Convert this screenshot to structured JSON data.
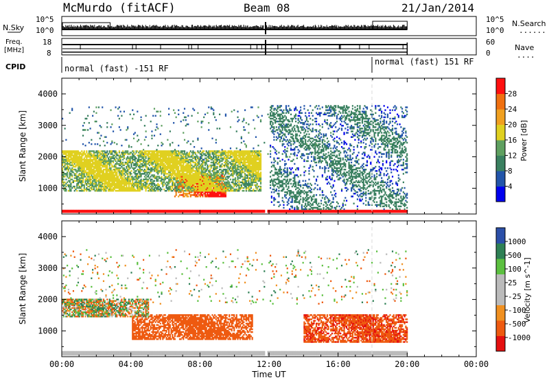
{
  "header": {
    "station": "McMurdo (fitACF)",
    "beam": "Beam 08",
    "date": "21/Jan/2014"
  },
  "summary_panels": {
    "nsky_label": "N.Sky",
    "nsearch_label": "N.Search",
    "nsearch_legend": "......",
    "noise_ticks": [
      "10^5",
      "10^0"
    ],
    "freq_label_1": "Freq.",
    "freq_label_2": "[MHz]",
    "freq_ticks": [
      "18",
      "8"
    ],
    "nave_label": "Nave",
    "nave_legend": "....",
    "nave_ticks": [
      "60",
      "0"
    ],
    "cpid_label": "CPID",
    "cpid_segments": [
      {
        "label": "normal (fast) -151 RF",
        "start_hour": 0.0,
        "end_hour": 18.0
      },
      {
        "label": "normal (fast) 151 RF",
        "start_hour": 18.0,
        "end_hour": 20.0
      }
    ]
  },
  "time_axis": {
    "label": "Time UT",
    "ticks": [
      "00:00",
      "04:00",
      "08:00",
      "12:00",
      "16:00",
      "20:00",
      "00:00"
    ]
  },
  "colors": {
    "power_scale": [
      "#0000ee",
      "#2255aa",
      "#3a8060",
      "#5fa060",
      "#e0d020",
      "#f0a020",
      "#f07010",
      "#ff1010"
    ],
    "velocity_scale": [
      "#e51010",
      "#ee5a10",
      "#f09020",
      "#bbbbbb",
      "#bbbbbb",
      "#5cc040",
      "#2e8055",
      "#2b4fa8"
    ]
  },
  "chart_data": [
    {
      "type": "heatmap",
      "panel": "power",
      "ylabel": "Slant Range [km]",
      "ylim": [
        180,
        4500
      ],
      "yticks": [
        1000,
        2000,
        3000,
        4000
      ],
      "xlim_hours": [
        0,
        24
      ],
      "data_coverage_hours": [
        0,
        20
      ],
      "data_gap_hours": [
        11.7,
        11.85
      ],
      "colorbar_label": "Power [dB]",
      "colorbar_ticks": [
        "28",
        "24",
        "20",
        "16",
        "12",
        "8",
        "4"
      ],
      "colorbar_range": [
        0,
        32
      ],
      "features": [
        {
          "desc": "ground scatter band",
          "range_km": [
            200,
            300
          ],
          "hours": [
            0,
            20
          ],
          "power_db": 30
        },
        {
          "desc": "strong echoes",
          "range_km": [
            700,
            1400
          ],
          "hours": [
            6.5,
            9.5
          ],
          "power_db": 29
        },
        {
          "desc": "wavy echo band",
          "range_km": [
            900,
            2200
          ],
          "hours": [
            0,
            11.5
          ],
          "power_db": 18
        },
        {
          "desc": "scattered echoes",
          "range_km": [
            300,
            3600
          ],
          "hours": [
            12,
            20
          ],
          "power_db": 10
        }
      ]
    },
    {
      "type": "heatmap",
      "panel": "velocity",
      "ylabel": "Slant Range [km]",
      "ylim": [
        180,
        4500
      ],
      "yticks": [
        1000,
        2000,
        3000,
        4000
      ],
      "xlim_hours": [
        0,
        24
      ],
      "data_coverage_hours": [
        0,
        20
      ],
      "colorbar_label": "Velocity [m s^-1]",
      "colorbar_ticks": [
        "1000",
        "500",
        "100",
        "25",
        "-25",
        "-100",
        "-500",
        "-1000"
      ],
      "features": [
        {
          "desc": "ground scatter band",
          "range_km": [
            200,
            350
          ],
          "hours": [
            0,
            20
          ],
          "velocity": 0
        },
        {
          "desc": "receding flow",
          "range_km": [
            700,
            1500
          ],
          "hours": [
            4,
            11
          ],
          "velocity": -300
        },
        {
          "desc": "low velocity band",
          "range_km": [
            1400,
            2000
          ],
          "hours": [
            0,
            5
          ],
          "velocity": 0
        },
        {
          "desc": "receding patches",
          "range_km": [
            600,
            1500
          ],
          "hours": [
            14,
            20
          ],
          "velocity": -400
        }
      ]
    }
  ]
}
